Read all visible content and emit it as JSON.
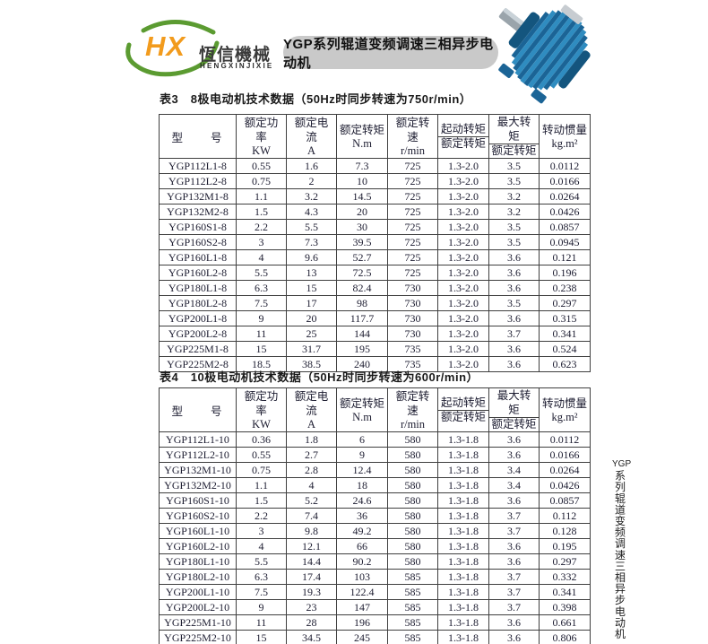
{
  "logo": {
    "hx": "HX",
    "company_cn": "恆信機械",
    "company_en": "HENGXINJIXIE",
    "orange": "#f29b1d",
    "green": "#5b9b31"
  },
  "banner": {
    "text": "YGP系列辊道变频调速三相异步电动机",
    "bg": "#c9c9c9"
  },
  "motor_image": {
    "alt": "blue finned asynchronous motor photo",
    "body_color": "#1f6fa3"
  },
  "headers": {
    "columns": [
      {
        "label": "型　　号",
        "unit": "",
        "fraction": false
      },
      {
        "label": "额定功率",
        "unit": "KW",
        "fraction": false
      },
      {
        "label": "额定电流",
        "unit": "A",
        "fraction": false
      },
      {
        "label": "额定转矩",
        "unit": "N.m",
        "fraction": false
      },
      {
        "label": "额定转速",
        "unit": "r/min",
        "fraction": false
      },
      {
        "label": "起动转矩",
        "unit": "额定转矩",
        "fraction": true
      },
      {
        "label": "最大转矩",
        "unit": "额定转矩",
        "fraction": true
      },
      {
        "label": "转动惯量",
        "unit": "kg.m²",
        "fraction": false
      }
    ]
  },
  "table3": {
    "title": "表3　8极电动机技术数据（50Hz时同步转速为750r/min）",
    "rows": [
      [
        "YGP112L1-8",
        "0.55",
        "1.6",
        "7.3",
        "725",
        "1.3-2.0",
        "3.5",
        "0.0112"
      ],
      [
        "YGP112L2-8",
        "0.75",
        "2",
        "10",
        "725",
        "1.3-2.0",
        "3.5",
        "0.0166"
      ],
      [
        "YGP132M1-8",
        "1.1",
        "3.2",
        "14.5",
        "725",
        "1.3-2.0",
        "3.2",
        "0.0264"
      ],
      [
        "YGP132M2-8",
        "1.5",
        "4.3",
        "20",
        "725",
        "1.3-2.0",
        "3.2",
        "0.0426"
      ],
      [
        "YGP160S1-8",
        "2.2",
        "5.5",
        "30",
        "725",
        "1.3-2.0",
        "3.5",
        "0.0857"
      ],
      [
        "YGP160S2-8",
        "3",
        "7.3",
        "39.5",
        "725",
        "1.3-2.0",
        "3.5",
        "0.0945"
      ],
      [
        "YGP160L1-8",
        "4",
        "9.6",
        "52.7",
        "725",
        "1.3-2.0",
        "3.6",
        "0.121"
      ],
      [
        "YGP160L2-8",
        "5.5",
        "13",
        "72.5",
        "725",
        "1.3-2.0",
        "3.6",
        "0.196"
      ],
      [
        "YGP180L1-8",
        "6.3",
        "15",
        "82.4",
        "730",
        "1.3-2.0",
        "3.6",
        "0.238"
      ],
      [
        "YGP180L2-8",
        "7.5",
        "17",
        "98",
        "730",
        "1.3-2.0",
        "3.5",
        "0.297"
      ],
      [
        "YGP200L1-8",
        "9",
        "20",
        "117.7",
        "730",
        "1.3-2.0",
        "3.6",
        "0.315"
      ],
      [
        "YGP200L2-8",
        "11",
        "25",
        "144",
        "730",
        "1.3-2.0",
        "3.7",
        "0.341"
      ],
      [
        "YGP225M1-8",
        "15",
        "31.7",
        "195",
        "735",
        "1.3-2.0",
        "3.6",
        "0.524"
      ],
      [
        "YGP225M2-8",
        "18.5",
        "38.5",
        "240",
        "735",
        "1.3-2.0",
        "3.6",
        "0.623"
      ]
    ]
  },
  "table4": {
    "title": "表4　10极电动机技术数据（50Hz时同步转速为600r/min）",
    "rows": [
      [
        "YGP112L1-10",
        "0.36",
        "1.8",
        "6",
        "580",
        "1.3-1.8",
        "3.6",
        "0.0112"
      ],
      [
        "YGP112L2-10",
        "0.55",
        "2.7",
        "9",
        "580",
        "1.3-1.8",
        "3.6",
        "0.0166"
      ],
      [
        "YGP132M1-10",
        "0.75",
        "2.8",
        "12.4",
        "580",
        "1.3-1.8",
        "3.4",
        "0.0264"
      ],
      [
        "YGP132M2-10",
        "1.1",
        "4",
        "18",
        "580",
        "1.3-1.8",
        "3.4",
        "0.0426"
      ],
      [
        "YGP160S1-10",
        "1.5",
        "5.2",
        "24.6",
        "580",
        "1.3-1.8",
        "3.6",
        "0.0857"
      ],
      [
        "YGP160S2-10",
        "2.2",
        "7.4",
        "36",
        "580",
        "1.3-1.8",
        "3.7",
        "0.112"
      ],
      [
        "YGP160L1-10",
        "3",
        "9.8",
        "49.2",
        "580",
        "1.3-1.8",
        "3.7",
        "0.128"
      ],
      [
        "YGP160L2-10",
        "4",
        "12.1",
        "66",
        "580",
        "1.3-1.8",
        "3.6",
        "0.195"
      ],
      [
        "YGP180L1-10",
        "5.5",
        "14.4",
        "90.2",
        "580",
        "1.3-1.8",
        "3.6",
        "0.297"
      ],
      [
        "YGP180L2-10",
        "6.3",
        "17.4",
        "103",
        "585",
        "1.3-1.8",
        "3.7",
        "0.332"
      ],
      [
        "YGP200L1-10",
        "7.5",
        "19.3",
        "122.4",
        "585",
        "1.3-1.8",
        "3.7",
        "0.341"
      ],
      [
        "YGP200L2-10",
        "9",
        "23",
        "147",
        "585",
        "1.3-1.8",
        "3.7",
        "0.398"
      ],
      [
        "YGP225M1-10",
        "11",
        "28",
        "196",
        "585",
        "1.3-1.8",
        "3.6",
        "0.661"
      ],
      [
        "YGP225M2-10",
        "15",
        "34.5",
        "245",
        "585",
        "1.3-1.8",
        "3.6",
        "0.806"
      ]
    ]
  },
  "side_text": {
    "latin": "YGP",
    "cjk": "系列辊道变频调速三相异步电动机"
  }
}
